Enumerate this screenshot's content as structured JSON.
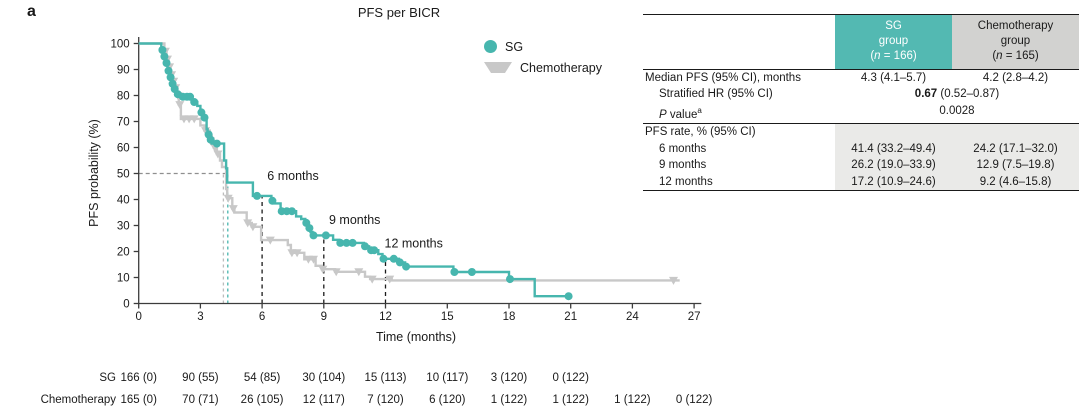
{
  "panel_label": "a",
  "colors": {
    "sg_teal": "#47b6ae",
    "chemo_gray": "#c8c8c8",
    "header_teal": "#53b9b2",
    "header_gray": "#d2d2d0",
    "band_gray": "#eaeae8",
    "axis": "#3c3c3c",
    "text": "#1a1a1a"
  },
  "chart_data": {
    "type": "line",
    "subtype": "kaplan-meier-step",
    "title": "PFS per BICR",
    "xlabel": "Time (months)",
    "ylabel": "PFS probability (%)",
    "xlim": [
      0,
      27
    ],
    "ylim": [
      0,
      100
    ],
    "xticks": [
      0,
      3,
      6,
      9,
      12,
      15,
      18,
      21,
      24,
      27
    ],
    "yticks": [
      0,
      10,
      20,
      30,
      40,
      50,
      60,
      70,
      80,
      90,
      100
    ],
    "grid": false,
    "legend_position": "top-right-inside",
    "legend": [
      {
        "name": "SG",
        "marker": "circle",
        "color": "#47b6ae"
      },
      {
        "name": "Chemotherapy",
        "marker": "triangle-down",
        "color": "#c8c8c8"
      }
    ],
    "series": [
      {
        "name": "SG",
        "color": "#47b6ae",
        "median_months": 4.3,
        "steps": [
          [
            0,
            100
          ],
          [
            1.1,
            97.5
          ],
          [
            1.2,
            95
          ],
          [
            1.3,
            92.5
          ],
          [
            1.4,
            89.5
          ],
          [
            1.5,
            87
          ],
          [
            1.6,
            84.5
          ],
          [
            1.7,
            82.5
          ],
          [
            1.85,
            80.5
          ],
          [
            2.0,
            79.5
          ],
          [
            2.6,
            77.5
          ],
          [
            2.85,
            76
          ],
          [
            3.0,
            73.5
          ],
          [
            3.15,
            71.5
          ],
          [
            3.3,
            67
          ],
          [
            3.35,
            65
          ],
          [
            3.45,
            63
          ],
          [
            3.55,
            61.5
          ],
          [
            4.15,
            55
          ],
          [
            4.25,
            52
          ],
          [
            4.3,
            46.5
          ],
          [
            5.55,
            41.4
          ],
          [
            6.45,
            39.5
          ],
          [
            6.6,
            38.5
          ],
          [
            6.9,
            35.5
          ],
          [
            7.65,
            33.5
          ],
          [
            7.9,
            32.5
          ],
          [
            8.1,
            31
          ],
          [
            8.2,
            29
          ],
          [
            8.35,
            27.5
          ],
          [
            8.45,
            26.2
          ],
          [
            9.45,
            24.5
          ],
          [
            9.75,
            23.3
          ],
          [
            10.95,
            22
          ],
          [
            11.2,
            20.5
          ],
          [
            11.65,
            19
          ],
          [
            11.85,
            17.2
          ],
          [
            12.65,
            15.8
          ],
          [
            12.95,
            14.2
          ],
          [
            15.3,
            12.1
          ],
          [
            18.0,
            9.4
          ],
          [
            19.25,
            2.8
          ],
          [
            20.95,
            2.8
          ]
        ],
        "markers": [
          [
            1.15,
            97.5
          ],
          [
            1.25,
            95
          ],
          [
            1.35,
            92.5
          ],
          [
            1.45,
            89.5
          ],
          [
            1.55,
            87
          ],
          [
            1.65,
            84.5
          ],
          [
            1.75,
            82.5
          ],
          [
            1.9,
            80.5
          ],
          [
            2.15,
            79.5
          ],
          [
            2.35,
            79.5
          ],
          [
            2.5,
            79.5
          ],
          [
            2.7,
            77.5
          ],
          [
            3.05,
            73.5
          ],
          [
            3.2,
            71.5
          ],
          [
            3.4,
            65
          ],
          [
            3.5,
            63
          ],
          [
            3.8,
            61.5
          ],
          [
            5.75,
            41.4
          ],
          [
            6.5,
            39.5
          ],
          [
            6.95,
            35.5
          ],
          [
            7.2,
            35.5
          ],
          [
            7.45,
            35.5
          ],
          [
            8.15,
            31
          ],
          [
            8.3,
            29
          ],
          [
            8.5,
            26.2
          ],
          [
            9.1,
            26.2
          ],
          [
            9.8,
            23.3
          ],
          [
            10.1,
            23.3
          ],
          [
            10.4,
            23.3
          ],
          [
            11.0,
            22
          ],
          [
            11.3,
            20.5
          ],
          [
            11.45,
            20.5
          ],
          [
            11.9,
            17.2
          ],
          [
            12.4,
            17.2
          ],
          [
            12.7,
            15.8
          ],
          [
            13.0,
            14.2
          ],
          [
            15.35,
            12.1
          ],
          [
            16.2,
            12.1
          ],
          [
            18.05,
            9.4
          ],
          [
            20.9,
            2.8
          ]
        ]
      },
      {
        "name": "Chemotherapy",
        "color": "#c8c8c8",
        "median_months": 4.2,
        "steps": [
          [
            0,
            100
          ],
          [
            1.25,
            97
          ],
          [
            1.35,
            94
          ],
          [
            1.45,
            91
          ],
          [
            1.55,
            88
          ],
          [
            1.65,
            85.5
          ],
          [
            1.75,
            83
          ],
          [
            1.85,
            80
          ],
          [
            1.95,
            76.5
          ],
          [
            2.05,
            71
          ],
          [
            3.0,
            68.5
          ],
          [
            3.2,
            66.5
          ],
          [
            3.45,
            64.5
          ],
          [
            3.55,
            62.5
          ],
          [
            3.65,
            60
          ],
          [
            3.8,
            57.5
          ],
          [
            3.95,
            55
          ],
          [
            4.05,
            52.5
          ],
          [
            4.25,
            44
          ],
          [
            4.3,
            40.5
          ],
          [
            4.55,
            36.5
          ],
          [
            4.65,
            35
          ],
          [
            5.25,
            31
          ],
          [
            5.5,
            29.5
          ],
          [
            5.95,
            24.4
          ],
          [
            7.25,
            22.5
          ],
          [
            7.4,
            19.5
          ],
          [
            8.05,
            17
          ],
          [
            8.6,
            14.5
          ],
          [
            8.9,
            13.2
          ],
          [
            9.55,
            12.2
          ],
          [
            11.0,
            10.3
          ],
          [
            11.25,
            9.4
          ],
          [
            12.3,
            8.9
          ],
          [
            26.3,
            8.9
          ]
        ],
        "markers": [
          [
            1.3,
            97
          ],
          [
            1.4,
            94
          ],
          [
            1.5,
            91
          ],
          [
            1.6,
            88
          ],
          [
            1.7,
            85.5
          ],
          [
            1.8,
            83
          ],
          [
            1.9,
            80
          ],
          [
            2.0,
            76.5
          ],
          [
            2.2,
            71
          ],
          [
            2.45,
            71
          ],
          [
            2.7,
            71
          ],
          [
            3.25,
            66.5
          ],
          [
            3.5,
            62.5
          ],
          [
            3.7,
            60
          ],
          [
            3.85,
            57.5
          ],
          [
            4.35,
            40.5
          ],
          [
            4.6,
            36.5
          ],
          [
            5.3,
            31
          ],
          [
            5.55,
            29.5
          ],
          [
            6.4,
            24.4
          ],
          [
            7.45,
            19.5
          ],
          [
            7.7,
            19.5
          ],
          [
            8.25,
            17
          ],
          [
            8.5,
            17
          ],
          [
            8.95,
            13.2
          ],
          [
            9.6,
            12.2
          ],
          [
            10.7,
            12.2
          ],
          [
            11.35,
            9.4
          ],
          [
            12.2,
            9.4
          ],
          [
            26.0,
            8.9
          ]
        ]
      }
    ],
    "reference_lines": {
      "median_h": {
        "y": 50,
        "x_start": 0,
        "x_end": 4.35,
        "color": "#8f8f8f"
      },
      "median_v": [
        {
          "x": 4.12,
          "y_top": 50,
          "color": "#bcbcbc"
        },
        {
          "x": 4.33,
          "y_top": 50,
          "color": "#47b6ae"
        }
      ],
      "timepoint_v": [
        {
          "x": 6,
          "y_top": 41.4
        },
        {
          "x": 9,
          "y_top": 26.2
        },
        {
          "x": 12,
          "y_top": 17.2
        }
      ]
    },
    "annotations": [
      {
        "text": "6 months",
        "x": 6.25,
        "y": 47.5
      },
      {
        "text": "9 months",
        "x": 9.25,
        "y": 30.5
      },
      {
        "text": "12 months",
        "x": 11.95,
        "y": 21.5
      }
    ]
  },
  "risk_table": {
    "rows": [
      {
        "label": "SG",
        "months": [
          0,
          3,
          6,
          9,
          12,
          15,
          18,
          21
        ],
        "counts": [
          "166 (0)",
          "90 (55)",
          "54 (85)",
          "30 (104)",
          "15 (113)",
          "10 (117)",
          "3 (120)",
          "0 (122)"
        ]
      },
      {
        "label": "Chemotherapy",
        "months": [
          0,
          3,
          6,
          9,
          12,
          15,
          18,
          21,
          24,
          27
        ],
        "counts": [
          "165 (0)",
          "70 (71)",
          "26 (105)",
          "12 (117)",
          "7 (120)",
          "6 (120)",
          "1 (122)",
          "1 (122)",
          "1 (122)",
          "0 (122)"
        ]
      }
    ]
  },
  "stats_table": {
    "header": {
      "sg": {
        "line1": "SG",
        "line2": "group",
        "n_open": "(",
        "n_italic": "n",
        "n_close": " = 166)"
      },
      "chemo": {
        "line1": "Chemotherapy",
        "line2": "group",
        "n_open": "(",
        "n_italic": "n",
        "n_close": " = 165)"
      }
    },
    "median_row": {
      "label": "Median PFS (95% CI), months",
      "sg": "4.3 (4.1–5.7)",
      "chemo": "4.2 (2.8–4.2)"
    },
    "hr_row": {
      "label": "Stratified HR (95% CI)",
      "bold": "0.67",
      "rest": " (0.52–0.87)"
    },
    "p_row": {
      "italic": "P",
      "rest": " value",
      "sup": "a",
      "value": "0.0028"
    },
    "rate_header": "PFS rate, % (95% CI)",
    "rate_rows": [
      {
        "label": "6 months",
        "sg": "41.4 (33.2–49.4)",
        "chemo": "24.2 (17.1–32.0)"
      },
      {
        "label": "9 months",
        "sg": "26.2 (19.0–33.9)",
        "chemo": "12.9 (7.5–19.8)"
      },
      {
        "label": "12 months",
        "sg": "17.2 (10.9–24.6)",
        "chemo": "9.2 (4.6–15.8)"
      }
    ]
  }
}
